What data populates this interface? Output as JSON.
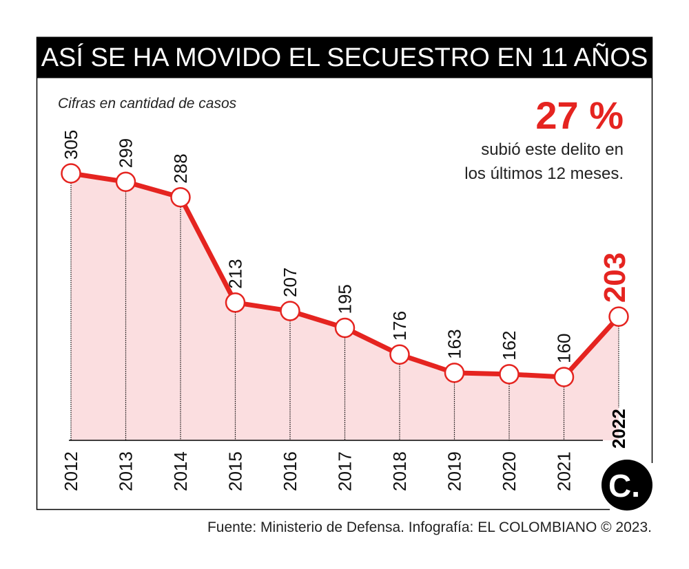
{
  "title": "ASÍ SE HA MOVIDO EL SECUESTRO EN 11 AÑOS",
  "subtitle": "Cifras en cantidad de casos",
  "highlight": {
    "value": "27 %",
    "text_line1": "subió este delito en",
    "text_line2": "los últimos 12 meses."
  },
  "source": "Fuente: Ministerio de Defensa. Infografía: EL COLOMBIANO © 2023.",
  "logo": "C.",
  "colors": {
    "accent": "#e52420",
    "fill": "#fbdee0",
    "title_bg": "#000000"
  },
  "chart_data": {
    "type": "area",
    "title": "ASÍ SE HA MOVIDO EL SECUESTRO EN 11 AÑOS",
    "categories": [
      "2012",
      "2013",
      "2014",
      "2015",
      "2016",
      "2017",
      "2018",
      "2019",
      "2020",
      "2021",
      "2022"
    ],
    "values": [
      305,
      299,
      288,
      213,
      207,
      195,
      176,
      163,
      162,
      160,
      203
    ],
    "data_labels": [
      "305",
      "299",
      "288",
      "213",
      "207",
      "195",
      "176",
      "163",
      "162",
      "160",
      "203"
    ],
    "highlighted_category": "2022",
    "grid": false,
    "xlabel": "",
    "ylabel": ""
  }
}
